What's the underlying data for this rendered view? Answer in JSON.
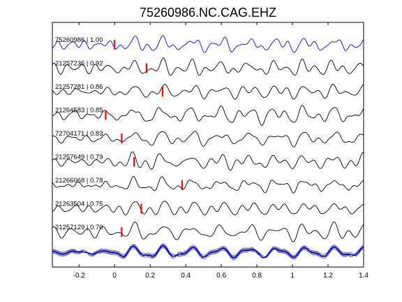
{
  "chart_data": {
    "type": "line",
    "title": "75260986.NC.CAG.EHZ",
    "xlabel": "",
    "ylabel": "",
    "xlim": [
      -0.35,
      1.4
    ],
    "x_ticks": [
      -0.2,
      0,
      0.2,
      0.4,
      0.6,
      0.8,
      1,
      1.2,
      1.4
    ],
    "x_tick_labels": [
      "-0.2",
      "0",
      "0.2",
      "0.4",
      "0.6",
      "0.8",
      "1",
      "1.2",
      "1.4"
    ],
    "grid": false,
    "colors": {
      "reference": "#0000ff",
      "trace": "#000000",
      "pick": "#ff0000",
      "stack": "#808080",
      "stack_reference": "#0000ff"
    },
    "traces": [
      {
        "label": "75260986 | 1.00",
        "event_id": "75260986",
        "correlation": 1.0,
        "pick_time": 0.0,
        "color": "#0000ff"
      },
      {
        "label": "21257236 | 0.92",
        "event_id": "21257236",
        "correlation": 0.92,
        "pick_time": 0.18,
        "color": "#000000"
      },
      {
        "label": "21257281 | 0.86",
        "event_id": "21257281",
        "correlation": 0.86,
        "pick_time": 0.27,
        "color": "#000000"
      },
      {
        "label": "21264583 | 0.85",
        "event_id": "21264583",
        "correlation": 0.85,
        "pick_time": -0.05,
        "color": "#000000"
      },
      {
        "label": "72704171 | 0.83",
        "event_id": "72704171",
        "correlation": 0.83,
        "pick_time": 0.04,
        "color": "#000000"
      },
      {
        "label": "21257649 | 0.79",
        "event_id": "21257649",
        "correlation": 0.79,
        "pick_time": 0.11,
        "color": "#000000"
      },
      {
        "label": "21266068 | 0.78",
        "event_id": "21266068",
        "correlation": 0.78,
        "pick_time": 0.38,
        "color": "#000000"
      },
      {
        "label": "21263504 | 0.75",
        "event_id": "21263504",
        "correlation": 0.75,
        "pick_time": 0.15,
        "color": "#000000"
      },
      {
        "label": "21257129 | 0.70",
        "event_id": "21257129",
        "correlation": 0.7,
        "pick_time": 0.04,
        "color": "#000000"
      }
    ],
    "stack": {
      "gray_traces": 8,
      "reference_color": "#0000ff"
    }
  }
}
